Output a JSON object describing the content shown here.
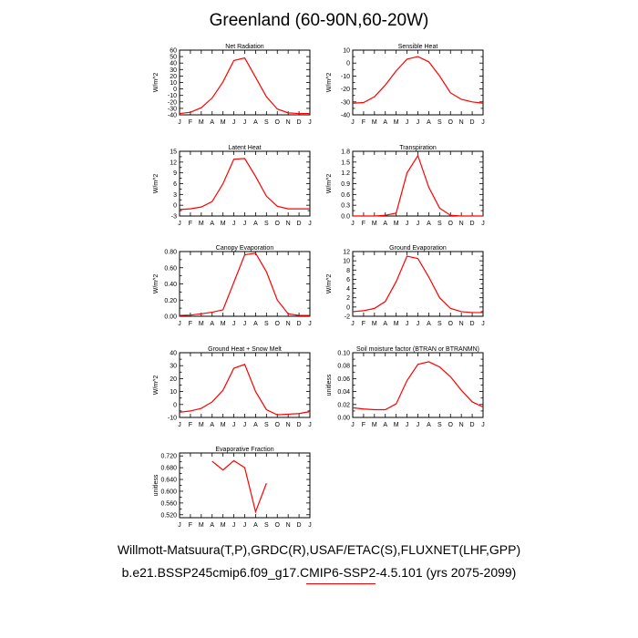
{
  "page": {
    "title": "Greenland (60-90N,60-20W)",
    "footer_line1": "Willmott-Matsuura(T,P),GRDC(R),USAF/ETAC(S),FLUXNET(LHF,GPP)",
    "footer_line2": "b.e21.BSSP245cmip6.f09_g17.CMIP6-SSP2-4.5.101 (yrs 2075-2099)"
  },
  "colors": {
    "series": "#ff0000",
    "axis": "#000000",
    "background": "#ffffff"
  },
  "chart_data": [
    {
      "type": "line",
      "title": "Net Radiation",
      "ylabel": "W/m^2",
      "categories": [
        "J",
        "F",
        "M",
        "A",
        "M",
        "J",
        "J",
        "A",
        "S",
        "O",
        "N",
        "D",
        "J"
      ],
      "ylim": [
        -40,
        60
      ],
      "yticks": [
        -40,
        -30,
        -20,
        -10,
        0,
        10,
        20,
        30,
        40,
        50,
        60
      ],
      "ytick_labels": [
        "-40",
        "-30",
        "-20",
        "-10",
        "0",
        "10",
        "20",
        "30",
        "40",
        "50",
        "60"
      ],
      "grid": false,
      "values": [
        -38,
        -36,
        -29,
        -14,
        11,
        44,
        48,
        18,
        -12,
        -31,
        -37,
        -38,
        -38
      ]
    },
    {
      "type": "line",
      "title": "Sensible Heat",
      "ylabel": "W/m^2",
      "categories": [
        "J",
        "F",
        "M",
        "A",
        "M",
        "J",
        "J",
        "A",
        "S",
        "O",
        "N",
        "D",
        "J"
      ],
      "ylim": [
        -40,
        10
      ],
      "yticks": [
        -40,
        -35,
        -30,
        -25,
        -20,
        -15,
        -10,
        -5,
        0,
        5,
        10
      ],
      "ytick_labels": [
        "-40",
        "",
        "-30",
        "",
        "-20",
        "",
        "-10",
        "",
        "0",
        "",
        "10"
      ],
      "grid": false,
      "values": [
        -31,
        -30.5,
        -26,
        -17,
        -6,
        3,
        5,
        1,
        -10,
        -23,
        -28,
        -30,
        -31
      ]
    },
    {
      "type": "line",
      "title": "Latent Heat",
      "ylabel": "W/m^2",
      "categories": [
        "J",
        "F",
        "M",
        "A",
        "M",
        "J",
        "J",
        "A",
        "S",
        "O",
        "N",
        "D",
        "J"
      ],
      "ylim": [
        -3,
        15
      ],
      "yticks": [
        -3,
        -1.5,
        0,
        1.5,
        3,
        4.5,
        6,
        7.5,
        9,
        10.5,
        12,
        13.5,
        15
      ],
      "ytick_labels": [
        "-3",
        "",
        "0",
        "",
        "3",
        "",
        "6",
        "",
        "9",
        "",
        "12",
        "",
        "15"
      ],
      "grid": false,
      "values": [
        -1.2,
        -1,
        -0.5,
        1,
        6,
        12.8,
        13,
        8,
        2.5,
        -0.3,
        -1,
        -1,
        -1
      ]
    },
    {
      "type": "line",
      "title": "Transpiration",
      "ylabel": "W/m^2",
      "categories": [
        "J",
        "F",
        "M",
        "A",
        "M",
        "J",
        "J",
        "A",
        "S",
        "O",
        "N",
        "D",
        "J"
      ],
      "ylim": [
        0,
        1.8
      ],
      "yticks": [
        0,
        0.15,
        0.3,
        0.45,
        0.6,
        0.75,
        0.9,
        1.05,
        1.2,
        1.35,
        1.5,
        1.65,
        1.8
      ],
      "ytick_labels": [
        "0.0",
        "",
        "0.3",
        "",
        "0.6",
        "",
        "0.9",
        "",
        "1.2",
        "",
        "1.5",
        "",
        "1.8"
      ],
      "grid": false,
      "values": [
        0,
        0,
        0,
        0.02,
        0.08,
        1.2,
        1.68,
        0.8,
        0.22,
        0.02,
        0,
        0,
        0
      ]
    },
    {
      "type": "line",
      "title": "Canopy Evaporation",
      "ylabel": "W/m^2",
      "categories": [
        "J",
        "F",
        "M",
        "A",
        "M",
        "J",
        "J",
        "A",
        "S",
        "O",
        "N",
        "D",
        "J"
      ],
      "ylim": [
        0,
        0.8
      ],
      "yticks": [
        0,
        0.1,
        0.2,
        0.3,
        0.4,
        0.5,
        0.6,
        0.7,
        0.8
      ],
      "ytick_labels": [
        "0.00",
        "",
        "0.20",
        "",
        "0.40",
        "",
        "0.60",
        "",
        "0.80"
      ],
      "grid": false,
      "values": [
        0.01,
        0.015,
        0.03,
        0.05,
        0.08,
        0.42,
        0.76,
        0.78,
        0.55,
        0.2,
        0.03,
        0.01,
        0.01
      ]
    },
    {
      "type": "line",
      "title": "Ground Evaporation",
      "ylabel": "W/m^2",
      "categories": [
        "J",
        "F",
        "M",
        "A",
        "M",
        "J",
        "J",
        "A",
        "S",
        "O",
        "N",
        "D",
        "J"
      ],
      "ylim": [
        -2,
        12
      ],
      "yticks": [
        -2,
        -1,
        0,
        1,
        2,
        3,
        4,
        5,
        6,
        7,
        8,
        9,
        10,
        11,
        12
      ],
      "ytick_labels": [
        "-2",
        "",
        "0",
        "",
        "2",
        "",
        "4",
        "",
        "6",
        "",
        "8",
        "",
        "10",
        "",
        "12"
      ],
      "grid": false,
      "values": [
        -1,
        -0.8,
        -0.3,
        1.2,
        5.5,
        11,
        10.5,
        6.5,
        2,
        -0.3,
        -1,
        -1.2,
        -1.2
      ]
    },
    {
      "type": "line",
      "title": "Ground Heat + Snow Melt",
      "ylabel": "W/m^2",
      "categories": [
        "J",
        "F",
        "M",
        "A",
        "M",
        "J",
        "J",
        "A",
        "S",
        "O",
        "N",
        "D",
        "J"
      ],
      "ylim": [
        -10,
        40
      ],
      "yticks": [
        -10,
        -5,
        0,
        5,
        10,
        15,
        20,
        25,
        30,
        35,
        40
      ],
      "ytick_labels": [
        "-10",
        "",
        "0",
        "",
        "10",
        "",
        "20",
        "",
        "30",
        "",
        "40"
      ],
      "grid": false,
      "values": [
        -6,
        -5,
        -3,
        2,
        11,
        28,
        31,
        10,
        -4,
        -8,
        -7.5,
        -7,
        -5.5
      ]
    },
    {
      "type": "line",
      "title": "Soil moisture factor (BTRAN or BTRANMN)",
      "ylabel": "unitless",
      "categories": [
        "J",
        "F",
        "M",
        "A",
        "M",
        "J",
        "J",
        "A",
        "S",
        "O",
        "N",
        "D",
        "J"
      ],
      "ylim": [
        0,
        0.1
      ],
      "yticks": [
        0,
        0.01,
        0.02,
        0.03,
        0.04,
        0.05,
        0.06,
        0.07,
        0.08,
        0.09,
        0.1
      ],
      "ytick_labels": [
        "0.00",
        "",
        "0.02",
        "",
        "0.04",
        "",
        "0.06",
        "",
        "0.08",
        "",
        "0.10"
      ],
      "grid": false,
      "values": [
        0.015,
        0.013,
        0.012,
        0.012,
        0.021,
        0.057,
        0.082,
        0.086,
        0.078,
        0.063,
        0.042,
        0.024,
        0.016
      ]
    },
    {
      "type": "line",
      "title": "Evaporative Fraction",
      "ylabel": "unitless",
      "categories": [
        "J",
        "F",
        "M",
        "A",
        "M",
        "J",
        "J",
        "A",
        "S",
        "O",
        "N",
        "D",
        "J"
      ],
      "ylim": [
        0.51,
        0.73
      ],
      "yticks": [
        0.52,
        0.54,
        0.56,
        0.58,
        0.6,
        0.62,
        0.64,
        0.66,
        0.68,
        0.7,
        0.72
      ],
      "ytick_labels": [
        "0.520",
        "",
        "0.560",
        "",
        "0.600",
        "",
        "0.640",
        "",
        "0.680",
        "",
        "0.720"
      ],
      "grid": false,
      "values": [
        null,
        null,
        null,
        0.702,
        0.672,
        0.704,
        0.68,
        0.53,
        0.627,
        null,
        null,
        null,
        null
      ]
    }
  ]
}
